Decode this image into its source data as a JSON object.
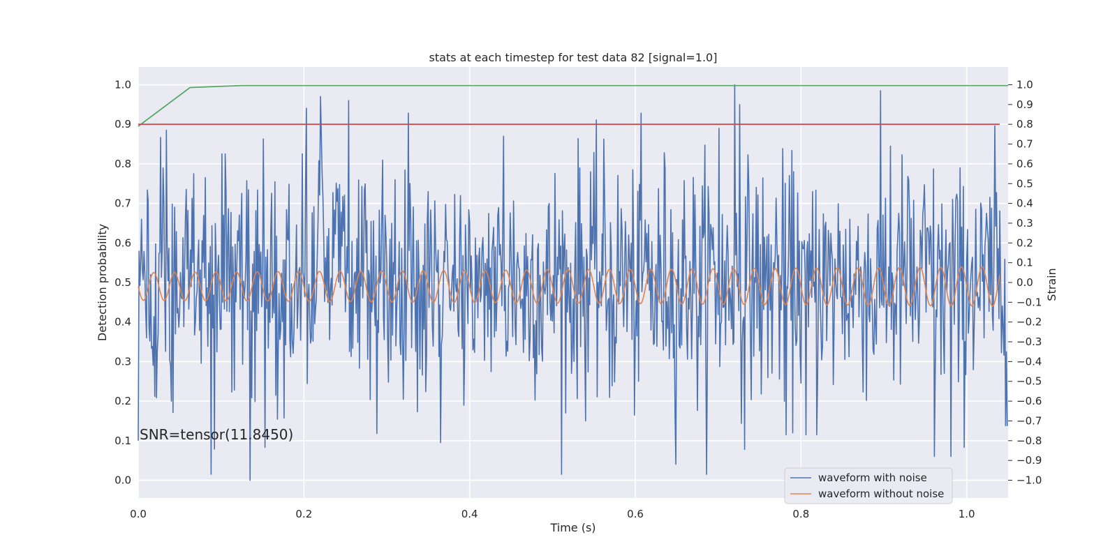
{
  "chart_data": {
    "type": "line",
    "title": "stats at each timestep for test data 82 [signal=1.0]",
    "xlabel": "Time (s)",
    "ylabel": "Detection probability",
    "ylabel_right": "Strain",
    "xlim": [
      0.0,
      1.05
    ],
    "ylim": [
      -0.045,
      1.045
    ],
    "ylim_right": [
      -1.09,
      1.09
    ],
    "x_ticks": [
      "0.0",
      "0.2",
      "0.4",
      "0.6",
      "0.8",
      "1.0"
    ],
    "y_ticks": [
      "0.0",
      "0.1",
      "0.2",
      "0.3",
      "0.4",
      "0.5",
      "0.6",
      "0.7",
      "0.8",
      "0.9",
      "1.0"
    ],
    "y_right_ticks": [
      "1.0",
      "0.9",
      "0.8",
      "0.7",
      "0.6",
      "0.5",
      "0.4",
      "0.3",
      "0.2",
      "0.1",
      "0.0",
      "-0.1",
      "-0.2",
      "-0.3",
      "-0.4",
      "-0.5",
      "-0.6",
      "-0.7",
      "-0.8",
      "-0.9",
      "-1.0"
    ],
    "grid": true,
    "legend_position": "lower-right",
    "annotation": "SNR=tensor(11.8450)",
    "series": [
      {
        "name": "waveform with noise",
        "axis": "right",
        "color": "#4c72b0",
        "noise_seed": 82,
        "x": [
          0.0,
          0.0039,
          0.0336,
          0.0395,
          0.1005,
          0.1045,
          0.1345,
          0.1655,
          0.2535,
          0.3645,
          0.4405,
          0.5455,
          0.7005,
          0.7185,
          0.7195,
          0.7215,
          0.7255,
          0.7815,
          0.8055,
          0.8185,
          0.8185,
          0.9075,
          0.9605,
          0.9805,
          1.0405
        ],
        "y": [
          -0.8,
          0.32,
          0.77,
          -0.6,
          0.65,
          0.65,
          -1.0,
          -0.57,
          0.92,
          -0.81,
          0.74,
          0.56,
          0.78,
          -0.3,
          1.0,
          0.35,
          0.9,
          -0.77,
          -0.77,
          -0.77,
          -0.77,
          0.69,
          -0.88,
          -0.88,
          0.0
        ]
      },
      {
        "name": "waveform without noise",
        "axis": "right",
        "color": "#dd8452",
        "amplitude_start": 0.07,
        "amplitude_end": 0.1,
        "cycles": 40
      },
      {
        "axis": "left",
        "color": "#55a868",
        "x": [
          0.0,
          0.0625,
          0.125,
          1.05
        ],
        "y": [
          0.895,
          0.993,
          0.998,
          0.998
        ]
      },
      {
        "axis": "left",
        "color": "#c44e52",
        "x": [
          0.0,
          1.04
        ],
        "y": [
          0.9,
          0.9
        ]
      }
    ]
  }
}
